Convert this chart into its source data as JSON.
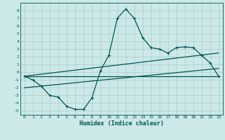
{
  "xlabel": "Humidex (Indice chaleur)",
  "background_color": "#cce8e8",
  "grid_color": "#aacece",
  "line_color": "#005555",
  "xlim": [
    -0.5,
    23.5
  ],
  "ylim": [
    -5.5,
    9.0
  ],
  "x_ticks": [
    0,
    1,
    2,
    3,
    4,
    5,
    6,
    7,
    8,
    9,
    10,
    11,
    12,
    13,
    14,
    15,
    16,
    17,
    18,
    19,
    20,
    21,
    22,
    23
  ],
  "y_ticks": [
    -5,
    -4,
    -3,
    -2,
    -1,
    0,
    1,
    2,
    3,
    4,
    5,
    6,
    7,
    8
  ],
  "curve1_x": [
    0,
    1,
    2,
    3,
    4,
    5,
    6,
    7,
    8,
    9,
    10,
    11,
    12,
    13,
    14,
    15,
    16,
    17,
    18,
    19,
    20,
    21,
    22,
    23
  ],
  "curve1_y": [
    -0.5,
    -1.0,
    -1.8,
    -3.0,
    -3.2,
    -4.4,
    -4.8,
    -4.8,
    -3.3,
    0.2,
    2.2,
    7.0,
    8.2,
    7.0,
    4.5,
    3.2,
    3.0,
    2.5,
    3.2,
    3.3,
    3.2,
    2.2,
    1.2,
    -0.5
  ],
  "curve2_x": [
    0,
    23
  ],
  "curve2_y": [
    -0.5,
    -0.5
  ],
  "curve3_x": [
    0,
    23
  ],
  "curve3_y": [
    -2.0,
    0.5
  ],
  "curve4_x": [
    0,
    23
  ],
  "curve4_y": [
    -0.5,
    2.5
  ]
}
